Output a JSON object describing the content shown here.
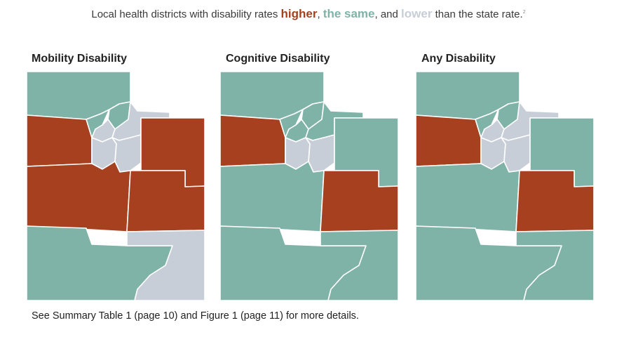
{
  "title": {
    "prefix": "Local health districts with disability rates ",
    "higher": "higher",
    "sep1": ", ",
    "same": "the same",
    "sep2": ", and ",
    "lower": "lower",
    "suffix": " than the state rate.",
    "note": "2"
  },
  "colors": {
    "higher": "#a6401f",
    "same": "#7fb3a7",
    "lower": "#c7ced8",
    "border": "#ffffff"
  },
  "maps": [
    {
      "label": "Mobility Disability",
      "districts": {
        "north": "same",
        "west": "higher",
        "wasatch_a": "same",
        "wasatch_b": "same",
        "wasatch_c": "lower",
        "northeast": "lower",
        "central_a": "lower",
        "central_b": "lower",
        "east": "higher",
        "central": "higher",
        "southeast": "higher",
        "southwest": "same",
        "southeast_corner": "lower"
      }
    },
    {
      "label": "Cognitive Disability",
      "districts": {
        "north": "same",
        "west": "higher",
        "wasatch_a": "same",
        "wasatch_b": "same",
        "wasatch_c": "same",
        "northeast": "same",
        "central_a": "lower",
        "central_b": "lower",
        "east": "same",
        "central": "same",
        "southeast": "higher",
        "southwest": "same",
        "southeast_corner": "same"
      }
    },
    {
      "label": "Any Disability",
      "districts": {
        "north": "same",
        "west": "higher",
        "wasatch_a": "same",
        "wasatch_b": "same",
        "wasatch_c": "lower",
        "northeast": "lower",
        "central_a": "lower",
        "central_b": "lower",
        "east": "same",
        "central": "same",
        "southeast": "higher",
        "southwest": "same",
        "southeast_corner": "same"
      }
    }
  ],
  "footnote": "See Summary Table 1 (page 10) and Figure 1 (page 11) for more details."
}
